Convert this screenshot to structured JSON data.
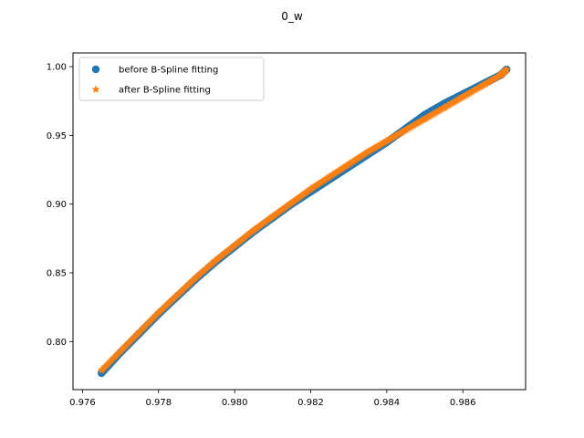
{
  "chart_data": {
    "type": "scatter",
    "title": "0_w",
    "xlabel": "",
    "ylabel": "",
    "xlim": [
      0.97575,
      0.98765
    ],
    "ylim": [
      0.765,
      1.01
    ],
    "x_ticks": [
      0.976,
      0.978,
      0.98,
      0.982,
      0.984,
      0.986
    ],
    "x_tick_labels": [
      "0.976",
      "0.978",
      "0.980",
      "0.982",
      "0.984",
      "0.986"
    ],
    "y_ticks": [
      0.8,
      0.85,
      0.9,
      0.95,
      1.0
    ],
    "y_tick_labels": [
      "0.80",
      "0.85",
      "0.90",
      "0.95",
      "1.00"
    ],
    "grid": false,
    "legend": {
      "placement": "top-left"
    },
    "colors": {
      "before": "#1f77b4",
      "after": "#ff7f0e"
    },
    "series": [
      {
        "name": "before B-Spline fitting",
        "marker": "circle",
        "color": "#1f77b4",
        "x": [
          0.9765,
          0.977,
          0.9775,
          0.978,
          0.9785,
          0.979,
          0.9795,
          0.98,
          0.9805,
          0.981,
          0.9815,
          0.982,
          0.9825,
          0.983,
          0.9835,
          0.984,
          0.9845,
          0.985,
          0.9855,
          0.986,
          0.9865,
          0.987,
          0.98715
        ],
        "y": [
          0.777,
          0.792,
          0.806,
          0.82,
          0.833,
          0.846,
          0.858,
          0.869,
          0.88,
          0.89,
          0.9,
          0.909,
          0.918,
          0.927,
          0.936,
          0.945,
          0.955,
          0.965,
          0.973,
          0.98,
          0.987,
          0.994,
          0.998
        ]
      },
      {
        "name": "after B-Spline fitting",
        "marker": "star",
        "color": "#ff7f0e",
        "x": [
          0.9765,
          0.977,
          0.9775,
          0.978,
          0.9785,
          0.979,
          0.9795,
          0.98,
          0.9805,
          0.981,
          0.9815,
          0.982,
          0.9825,
          0.983,
          0.9835,
          0.984,
          0.9845,
          0.985,
          0.9855,
          0.986,
          0.9865,
          0.987,
          0.98715
        ],
        "y": [
          0.779,
          0.793,
          0.807,
          0.821,
          0.834,
          0.847,
          0.859,
          0.87,
          0.881,
          0.891,
          0.901,
          0.911,
          0.92,
          0.929,
          0.938,
          0.946,
          0.954,
          0.962,
          0.97,
          0.978,
          0.986,
          0.994,
          0.998
        ]
      }
    ]
  }
}
